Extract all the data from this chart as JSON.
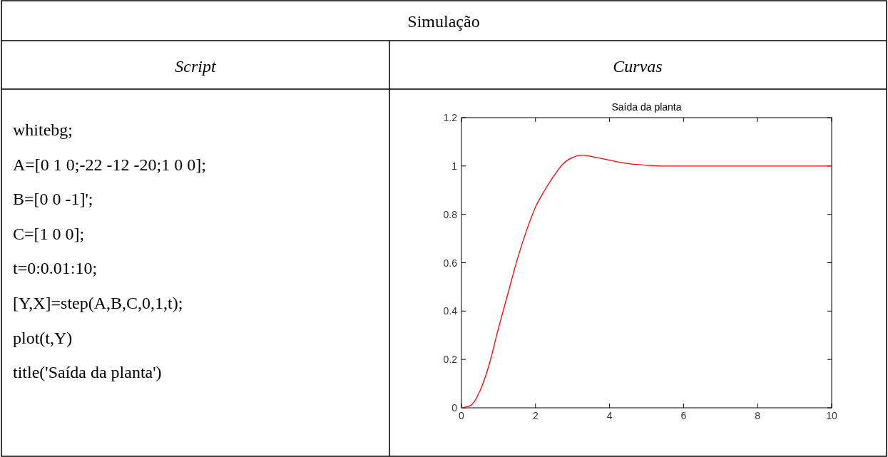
{
  "chart_data": [
    {
      "type": "other",
      "title": "Simulação",
      "annotations": [
        "Script",
        "Curvas",
        "whitebg;",
        "A=[0 1 0;-22 -12 -20;1 0 0];",
        "B=[0 0 -1]';",
        "C=[1 0 0];",
        "t=0:0.01:10;",
        "[Y,X]=step(A,B,C,0,1,t);",
        "plot(t,Y)",
        "title('Saída da planta')"
      ]
    },
    {
      "type": "line",
      "title": "Saída da planta",
      "x": [
        0,
        0.25,
        0.5,
        0.75,
        1,
        1.25,
        1.5,
        1.75,
        2,
        2.25,
        2.5,
        2.75,
        3,
        3.25,
        3.5,
        3.75,
        4,
        4.5,
        5,
        5.5,
        6,
        7,
        8,
        9,
        10
      ],
      "series": [
        {
          "color": "#ff0000",
          "values": [
            0,
            0.01,
            0.07,
            0.18,
            0.33,
            0.47,
            0.61,
            0.73,
            0.83,
            0.9,
            0.96,
            1.01,
            1.035,
            1.045,
            1.04,
            1.032,
            1.024,
            1.01,
            1.003,
            1.0,
            1.0,
            1.0,
            1.0,
            1.0,
            1.0
          ]
        }
      ],
      "xlim": [
        0,
        10
      ],
      "ylim": [
        0,
        1.2
      ],
      "xticks": [
        0,
        2,
        4,
        6,
        8,
        10
      ],
      "yticks": [
        0,
        0.2,
        0.4,
        0.6,
        0.8,
        1,
        1.2
      ],
      "grid": false
    }
  ]
}
